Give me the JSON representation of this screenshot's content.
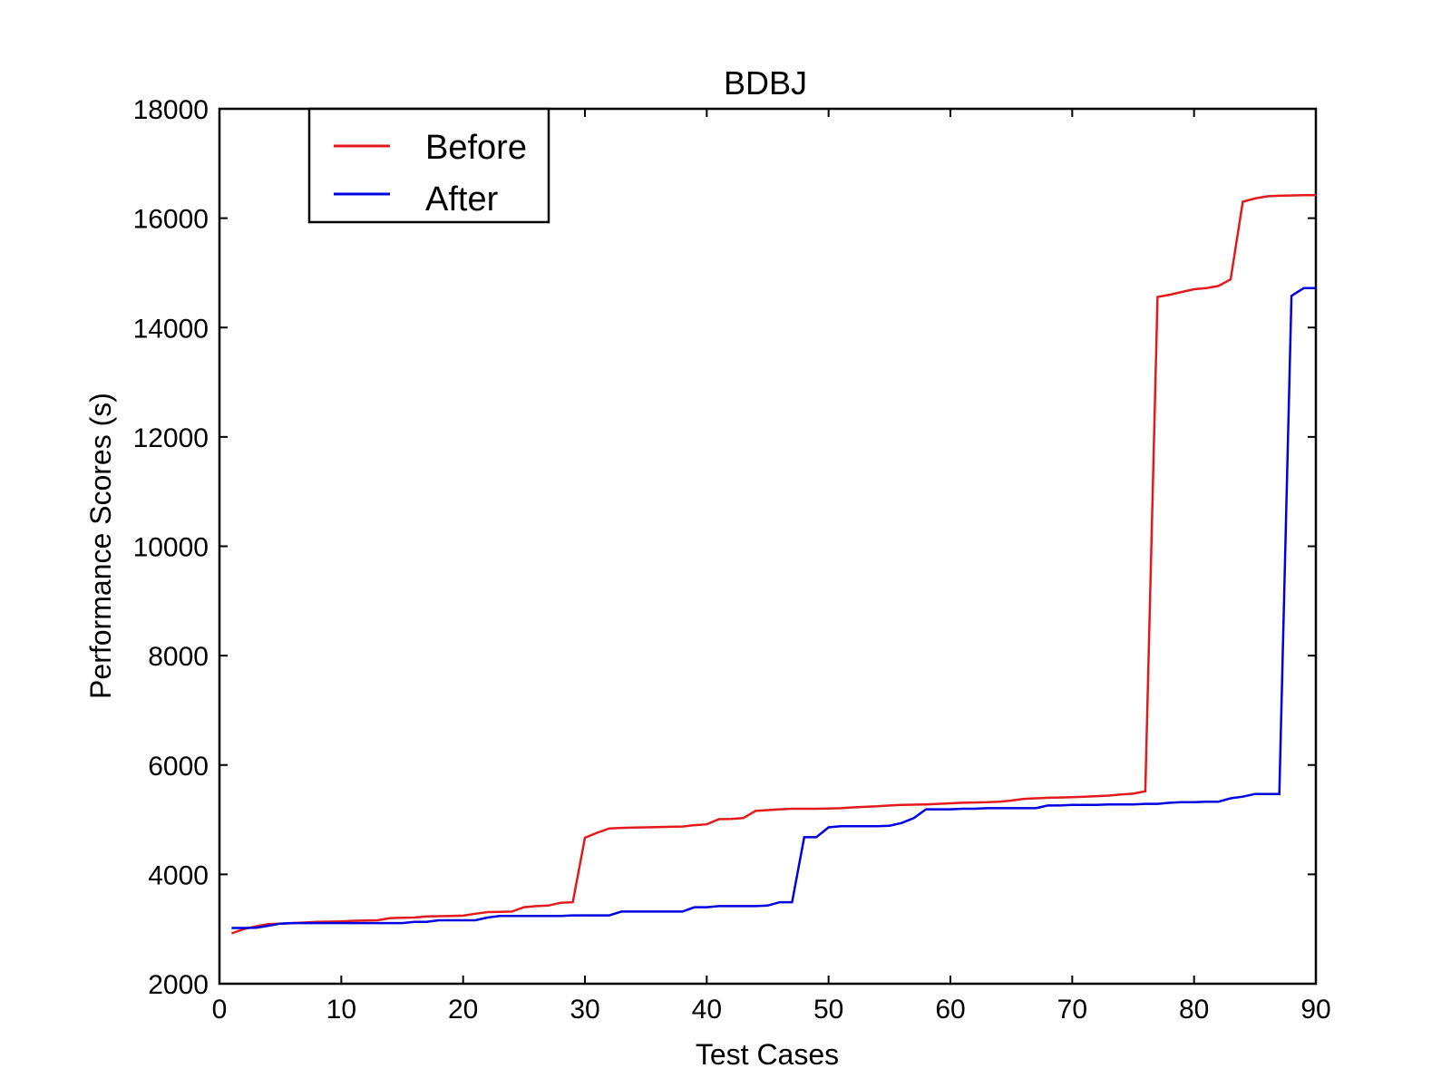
{
  "chart_data": {
    "type": "line",
    "title": "BDBJ",
    "xlabel": "Test Cases",
    "ylabel": "Performance Scores (s)",
    "xlim": [
      0,
      90
    ],
    "ylim": [
      2000,
      18000
    ],
    "xticks": [
      0,
      10,
      20,
      30,
      40,
      50,
      60,
      70,
      80,
      90
    ],
    "yticks": [
      2000,
      4000,
      6000,
      8000,
      10000,
      12000,
      14000,
      16000,
      18000
    ],
    "xtick_labels": [
      "0",
      "10",
      "20",
      "30",
      "40",
      "50",
      "60",
      "70",
      "80",
      "90"
    ],
    "ytick_labels": [
      "2000",
      "4000",
      "6000",
      "8000",
      "10000",
      "12000",
      "14000",
      "16000",
      "18000"
    ],
    "grid": false,
    "legend_position": "top-left",
    "series": [
      {
        "name": "Before",
        "color": "#e31a1c",
        "x": [
          1,
          2,
          3,
          4,
          5,
          6,
          7,
          8,
          9,
          10,
          11,
          12,
          13,
          14,
          15,
          16,
          17,
          18,
          19,
          20,
          21,
          22,
          23,
          24,
          25,
          26,
          27,
          28,
          29,
          30,
          31,
          32,
          33,
          34,
          35,
          36,
          37,
          38,
          39,
          40,
          41,
          42,
          43,
          44,
          45,
          46,
          47,
          48,
          49,
          50,
          51,
          52,
          53,
          54,
          55,
          56,
          57,
          58,
          59,
          60,
          61,
          62,
          63,
          64,
          65,
          66,
          67,
          68,
          69,
          70,
          71,
          72,
          73,
          74,
          75,
          76,
          77,
          78,
          79,
          80,
          81,
          82,
          83,
          84,
          85,
          86,
          87,
          88,
          89,
          90
        ],
        "y": [
          2920,
          3000,
          3050,
          3090,
          3100,
          3110,
          3120,
          3130,
          3135,
          3140,
          3150,
          3155,
          3160,
          3200,
          3205,
          3210,
          3230,
          3235,
          3240,
          3245,
          3280,
          3310,
          3315,
          3320,
          3400,
          3420,
          3430,
          3480,
          3490,
          4670,
          4760,
          4840,
          4850,
          4855,
          4860,
          4865,
          4870,
          4875,
          4900,
          4915,
          5010,
          5015,
          5030,
          5160,
          5175,
          5190,
          5200,
          5200,
          5200,
          5205,
          5210,
          5225,
          5235,
          5245,
          5260,
          5270,
          5275,
          5280,
          5290,
          5300,
          5310,
          5315,
          5320,
          5330,
          5350,
          5380,
          5390,
          5400,
          5405,
          5410,
          5420,
          5430,
          5440,
          5460,
          5475,
          5520,
          14560,
          14600,
          14650,
          14700,
          14720,
          14760,
          14880,
          16300,
          16360,
          16400,
          16410,
          16415,
          16420,
          16420
        ]
      },
      {
        "name": "After",
        "color": "#0000e0",
        "x": [
          1,
          2,
          3,
          4,
          5,
          6,
          7,
          8,
          9,
          10,
          11,
          12,
          13,
          14,
          15,
          16,
          17,
          18,
          19,
          20,
          21,
          22,
          23,
          24,
          25,
          26,
          27,
          28,
          29,
          30,
          31,
          32,
          33,
          34,
          35,
          36,
          37,
          38,
          39,
          40,
          41,
          42,
          43,
          44,
          45,
          46,
          47,
          48,
          49,
          50,
          51,
          52,
          53,
          54,
          55,
          56,
          57,
          58,
          59,
          60,
          61,
          62,
          63,
          64,
          65,
          66,
          67,
          68,
          69,
          70,
          71,
          72,
          73,
          74,
          75,
          76,
          77,
          78,
          79,
          80,
          81,
          82,
          83,
          84,
          85,
          86,
          87,
          88,
          89,
          90
        ],
        "y": [
          3020,
          3020,
          3025,
          3060,
          3100,
          3110,
          3110,
          3110,
          3110,
          3110,
          3110,
          3110,
          3110,
          3110,
          3110,
          3130,
          3130,
          3160,
          3160,
          3160,
          3160,
          3210,
          3240,
          3240,
          3240,
          3240,
          3240,
          3240,
          3250,
          3250,
          3250,
          3250,
          3320,
          3320,
          3320,
          3320,
          3320,
          3320,
          3400,
          3400,
          3420,
          3420,
          3420,
          3420,
          3430,
          3490,
          3490,
          4680,
          4680,
          4860,
          4880,
          4880,
          4880,
          4880,
          4890,
          4940,
          5030,
          5190,
          5190,
          5190,
          5200,
          5200,
          5210,
          5210,
          5210,
          5210,
          5210,
          5260,
          5260,
          5270,
          5270,
          5270,
          5280,
          5280,
          5280,
          5290,
          5290,
          5310,
          5320,
          5320,
          5330,
          5330,
          5390,
          5420,
          5470,
          5470,
          5470,
          14580,
          14720,
          14720
        ]
      }
    ]
  }
}
